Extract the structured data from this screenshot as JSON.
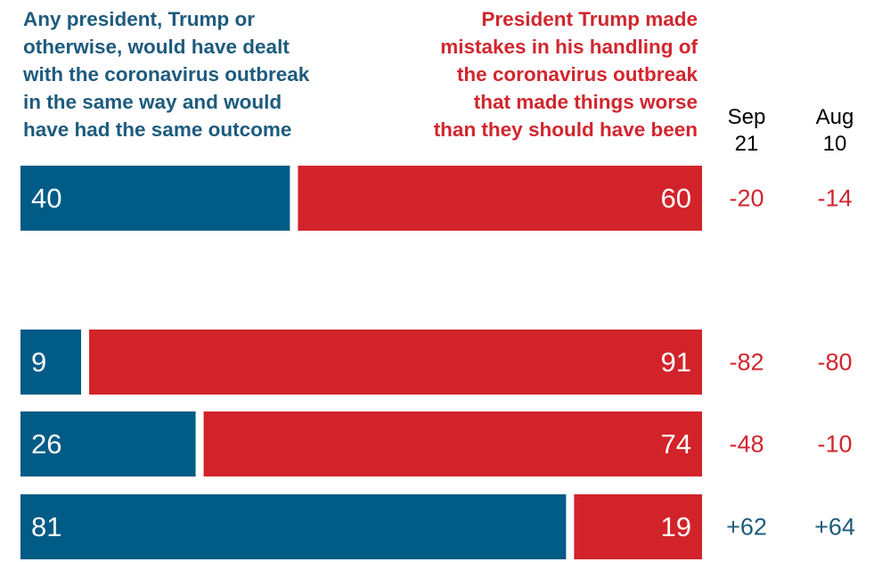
{
  "header": {
    "left_label": "Any president, Trump or\notherwise, would have dealt\nwith the coronavirus outbreak\nin the same way and would\nhave had the same outcome",
    "right_label": "President Trump made\nmistakes in his handling of\nthe coronavirus outbreak\nthat made things worse\nthan they should have been",
    "col1_label": "Sep\n21",
    "col2_label": "Aug\n10"
  },
  "colors": {
    "blue": "#005b86",
    "red": "#d2232a",
    "blue_text": "#1d5b7d",
    "red_text": "#d0262e"
  },
  "chart_data": {
    "type": "bar",
    "orientation": "horizontal-stacked-100",
    "xlim": [
      0,
      100
    ],
    "categories": [
      "",
      "",
      "",
      ""
    ],
    "series": [
      {
        "name": "Any president, Trump or otherwise, would have dealt with the coronavirus outbreak in the same way and would have had the same outcome",
        "values": [
          40,
          9,
          26,
          81
        ]
      },
      {
        "name": "President Trump made mistakes in his handling of the coronavirus outbreak that made things worse than they should have been",
        "values": [
          60,
          91,
          74,
          19
        ]
      }
    ],
    "net": {
      "Sep 21": [
        "-20",
        "-82",
        "-48",
        "+62"
      ],
      "Aug 10": [
        "-14",
        "-80",
        "-10",
        "+64"
      ]
    }
  }
}
